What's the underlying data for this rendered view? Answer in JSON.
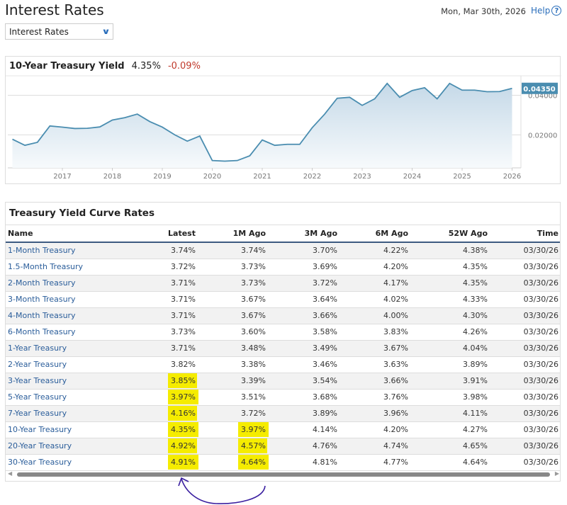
{
  "header": {
    "title": "Interest Rates",
    "date": "Mon, Mar 30th, 2026",
    "help_label": "Help",
    "help_icon": "question-circle-icon"
  },
  "dropdown": {
    "selected": "Interest Rates",
    "icon": "chevron-down-icon"
  },
  "chart_panel": {
    "title": "10-Year Treasury Yield",
    "value": "4.35%",
    "change": "-0.09%",
    "current_label": "0.04350"
  },
  "chart_data": {
    "type": "area",
    "title": "10-Year Treasury Yield",
    "x": [
      2016,
      2016.25,
      2016.5,
      2016.75,
      2017,
      2017.25,
      2017.5,
      2017.75,
      2018,
      2018.25,
      2018.5,
      2018.75,
      2019,
      2019.25,
      2019.5,
      2019.75,
      2020,
      2020.25,
      2020.5,
      2020.75,
      2021,
      2021.25,
      2021.5,
      2021.75,
      2022,
      2022.25,
      2022.5,
      2022.75,
      2023,
      2023.25,
      2023.5,
      2023.75,
      2024,
      2024.25,
      2024.5,
      2024.75,
      2025,
      2025.25,
      2025.5,
      2025.75,
      2026
    ],
    "values": [
      0.0178,
      0.0147,
      0.0162,
      0.0245,
      0.0239,
      0.0232,
      0.0233,
      0.024,
      0.0275,
      0.0287,
      0.0305,
      0.0267,
      0.0239,
      0.02,
      0.0168,
      0.0194,
      0.007,
      0.0067,
      0.007,
      0.0094,
      0.0174,
      0.0147,
      0.0152,
      0.0152,
      0.0236,
      0.0305,
      0.0385,
      0.039,
      0.0349,
      0.0382,
      0.046,
      0.039,
      0.0424,
      0.0438,
      0.0382,
      0.046,
      0.0426,
      0.0426,
      0.0418,
      0.0419,
      0.0435
    ],
    "x_ticks": [
      "2017",
      "2018",
      "2019",
      "2020",
      "2021",
      "2022",
      "2023",
      "2024",
      "2025",
      "2026"
    ],
    "y_ticks": [
      "0.02000",
      "0.04000"
    ],
    "ylim": [
      0.0033,
      0.0495
    ],
    "grid": true,
    "line_color": "#4a8db0"
  },
  "table": {
    "title": "Treasury Yield Curve Rates",
    "columns": [
      "Name",
      "Latest",
      "1M Ago",
      "3M Ago",
      "6M Ago",
      "52W Ago",
      "Time"
    ],
    "rows": [
      [
        "1-Month Treasury",
        "3.74%",
        "3.74%",
        "3.70%",
        "4.22%",
        "4.38%",
        "03/30/26"
      ],
      [
        "1.5-Month Treasury",
        "3.72%",
        "3.73%",
        "3.69%",
        "4.20%",
        "4.35%",
        "03/30/26"
      ],
      [
        "2-Month Treasury",
        "3.71%",
        "3.73%",
        "3.72%",
        "4.17%",
        "4.35%",
        "03/30/26"
      ],
      [
        "3-Month Treasury",
        "3.71%",
        "3.67%",
        "3.64%",
        "4.02%",
        "4.33%",
        "03/30/26"
      ],
      [
        "4-Month Treasury",
        "3.71%",
        "3.67%",
        "3.66%",
        "4.00%",
        "4.30%",
        "03/30/26"
      ],
      [
        "6-Month Treasury",
        "3.73%",
        "3.60%",
        "3.58%",
        "3.83%",
        "4.26%",
        "03/30/26"
      ],
      [
        "1-Year Treasury",
        "3.71%",
        "3.48%",
        "3.49%",
        "3.67%",
        "4.04%",
        "03/30/26"
      ],
      [
        "2-Year Treasury",
        "3.82%",
        "3.38%",
        "3.46%",
        "3.63%",
        "3.89%",
        "03/30/26"
      ],
      [
        "3-Year Treasury",
        "3.85%",
        "3.39%",
        "3.54%",
        "3.66%",
        "3.91%",
        "03/30/26"
      ],
      [
        "5-Year Treasury",
        "3.97%",
        "3.51%",
        "3.68%",
        "3.76%",
        "3.98%",
        "03/30/26"
      ],
      [
        "7-Year Treasury",
        "4.16%",
        "3.72%",
        "3.89%",
        "3.96%",
        "4.11%",
        "03/30/26"
      ],
      [
        "10-Year Treasury",
        "4.35%",
        "3.97%",
        "4.14%",
        "4.20%",
        "4.27%",
        "03/30/26"
      ],
      [
        "20-Year Treasury",
        "4.92%",
        "4.57%",
        "4.76%",
        "4.74%",
        "4.65%",
        "03/30/26"
      ],
      [
        "30-Year Treasury",
        "4.91%",
        "4.64%",
        "4.81%",
        "4.77%",
        "4.64%",
        "03/30/26"
      ]
    ],
    "highlighted_latest_rows": [
      8,
      9,
      10,
      11,
      12,
      13
    ],
    "highlighted_1m_rows": [
      11,
      12,
      13
    ],
    "highlight_color": "#f5ec00"
  }
}
